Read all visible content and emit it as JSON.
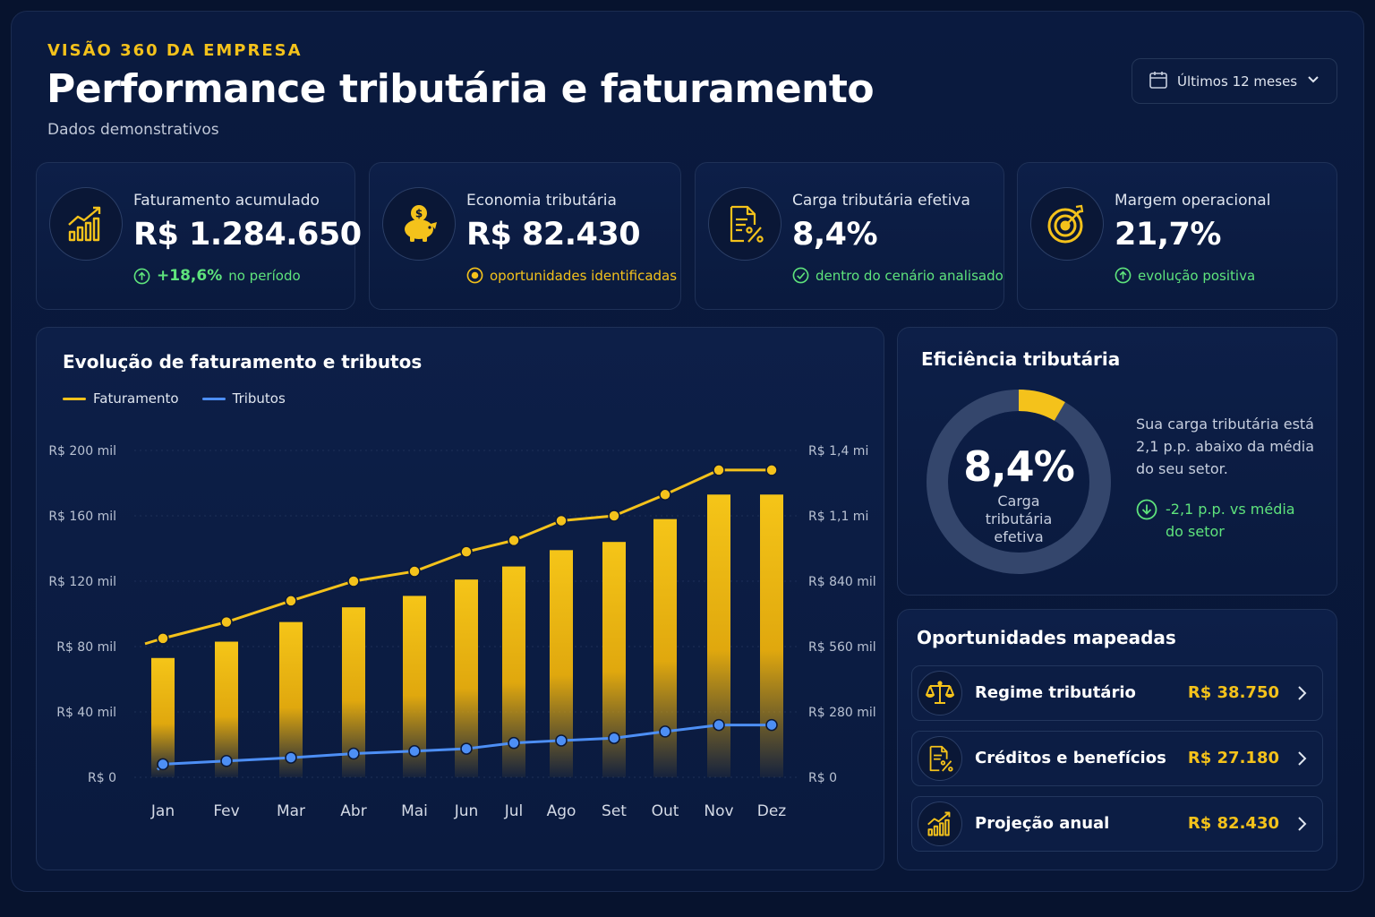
{
  "header": {
    "eyebrow": "VISÃO 360 DA EMPRESA",
    "title": "Performance tributária e faturamento",
    "subtitle": "Dados demonstrativos",
    "period": "Últimos 12 meses",
    "period_icon": "calendar-icon"
  },
  "kpis": [
    {
      "icon": "bar-chart-growth-icon",
      "label": "Faturamento acumulado",
      "value": "R$ 1.284.650",
      "note_strong": "+18,6%",
      "note": "no período",
      "note_icon": "arrow-up-circle-icon",
      "note_color": "#5ee37c"
    },
    {
      "icon": "piggy-bank-icon",
      "label": "Economia tributária",
      "value": "R$ 82.430",
      "note": "oportunidades identificadas",
      "note_icon": "target-dot-icon",
      "note_color": "#f4c21b"
    },
    {
      "icon": "document-percent-icon",
      "label": "Carga tributária efetiva",
      "value": "8,4%",
      "note": "dentro do cenário analisado",
      "note_icon": "check-circle-icon",
      "note_color": "#5ee37c"
    },
    {
      "icon": "target-arrow-icon",
      "label": "Margem operacional",
      "value": "21,7%",
      "note": "evolução positiva",
      "note_icon": "arrow-up-circle-icon",
      "note_color": "#5ee37c"
    }
  ],
  "chart_section": {
    "title": "Evolução de faturamento e tributos",
    "legend": [
      "Faturamento",
      "Tributos"
    ]
  },
  "chart_data": {
    "type": "bar",
    "categories": [
      "Jan",
      "Fev",
      "Mar",
      "Abr",
      "Mai",
      "Jun",
      "Jul",
      "Ago",
      "Set",
      "Out",
      "Nov",
      "Dez"
    ],
    "left_axis_ticks": [
      "R$ 0",
      "R$ 40 mil",
      "R$ 80 mil",
      "R$ 120 mil",
      "R$ 160 mil",
      "R$ 200 mil"
    ],
    "right_axis_ticks": [
      "R$ 0",
      "R$ 280 mil",
      "R$ 560 mil",
      "R$ 840 mil",
      "R$ 1,1 mi",
      "R$ 1,4 mi"
    ],
    "ylim_left": [
      0,
      200000
    ],
    "series": [
      {
        "name": "Faturamento",
        "type": "bar",
        "axis": "left",
        "color": "#f4c21b",
        "values": [
          73000,
          83000,
          95000,
          104000,
          111000,
          121000,
          129000,
          139000,
          144000,
          158000,
          173000,
          173000
        ]
      },
      {
        "name": "Faturamento",
        "type": "line",
        "axis": "left",
        "color": "#f4c21b",
        "values": [
          85000,
          95000,
          108000,
          120000,
          126000,
          138000,
          145000,
          157000,
          160000,
          173000,
          188000,
          188000
        ]
      },
      {
        "name": "Tributos",
        "type": "line",
        "axis": "left",
        "color": "#4d8ff5",
        "values": [
          8000,
          10000,
          12000,
          14500,
          16000,
          17500,
          21000,
          22500,
          24000,
          28000,
          32000,
          32000
        ]
      }
    ],
    "grid": true,
    "legend_position": "top-left"
  },
  "efficiency": {
    "title": "Eficiência tributária",
    "value": "8,4%",
    "value_label": "Carga tributária efetiva",
    "ring_fraction": 0.084,
    "note": "Sua carga tributária está 2,1 p.p. abaixo da média do seu setor.",
    "delta": "-2,1 p.p. vs média do setor",
    "delta_icon": "arrow-down-circle-icon"
  },
  "opportunities": {
    "title": "Oportunidades mapeadas",
    "items": [
      {
        "icon": "scale-balance-icon",
        "label": "Regime tributário",
        "value": "R$ 38.750"
      },
      {
        "icon": "document-percent-icon",
        "label": "Créditos e benefícios",
        "value": "R$ 27.180"
      },
      {
        "icon": "bar-chart-growth-icon",
        "label": "Projeção anual",
        "value": "R$ 82.430"
      }
    ]
  },
  "colors": {
    "accent": "#f4c21b",
    "positive": "#5ee37c",
    "secondary_series": "#4d8ff5",
    "background": "#07132e"
  }
}
